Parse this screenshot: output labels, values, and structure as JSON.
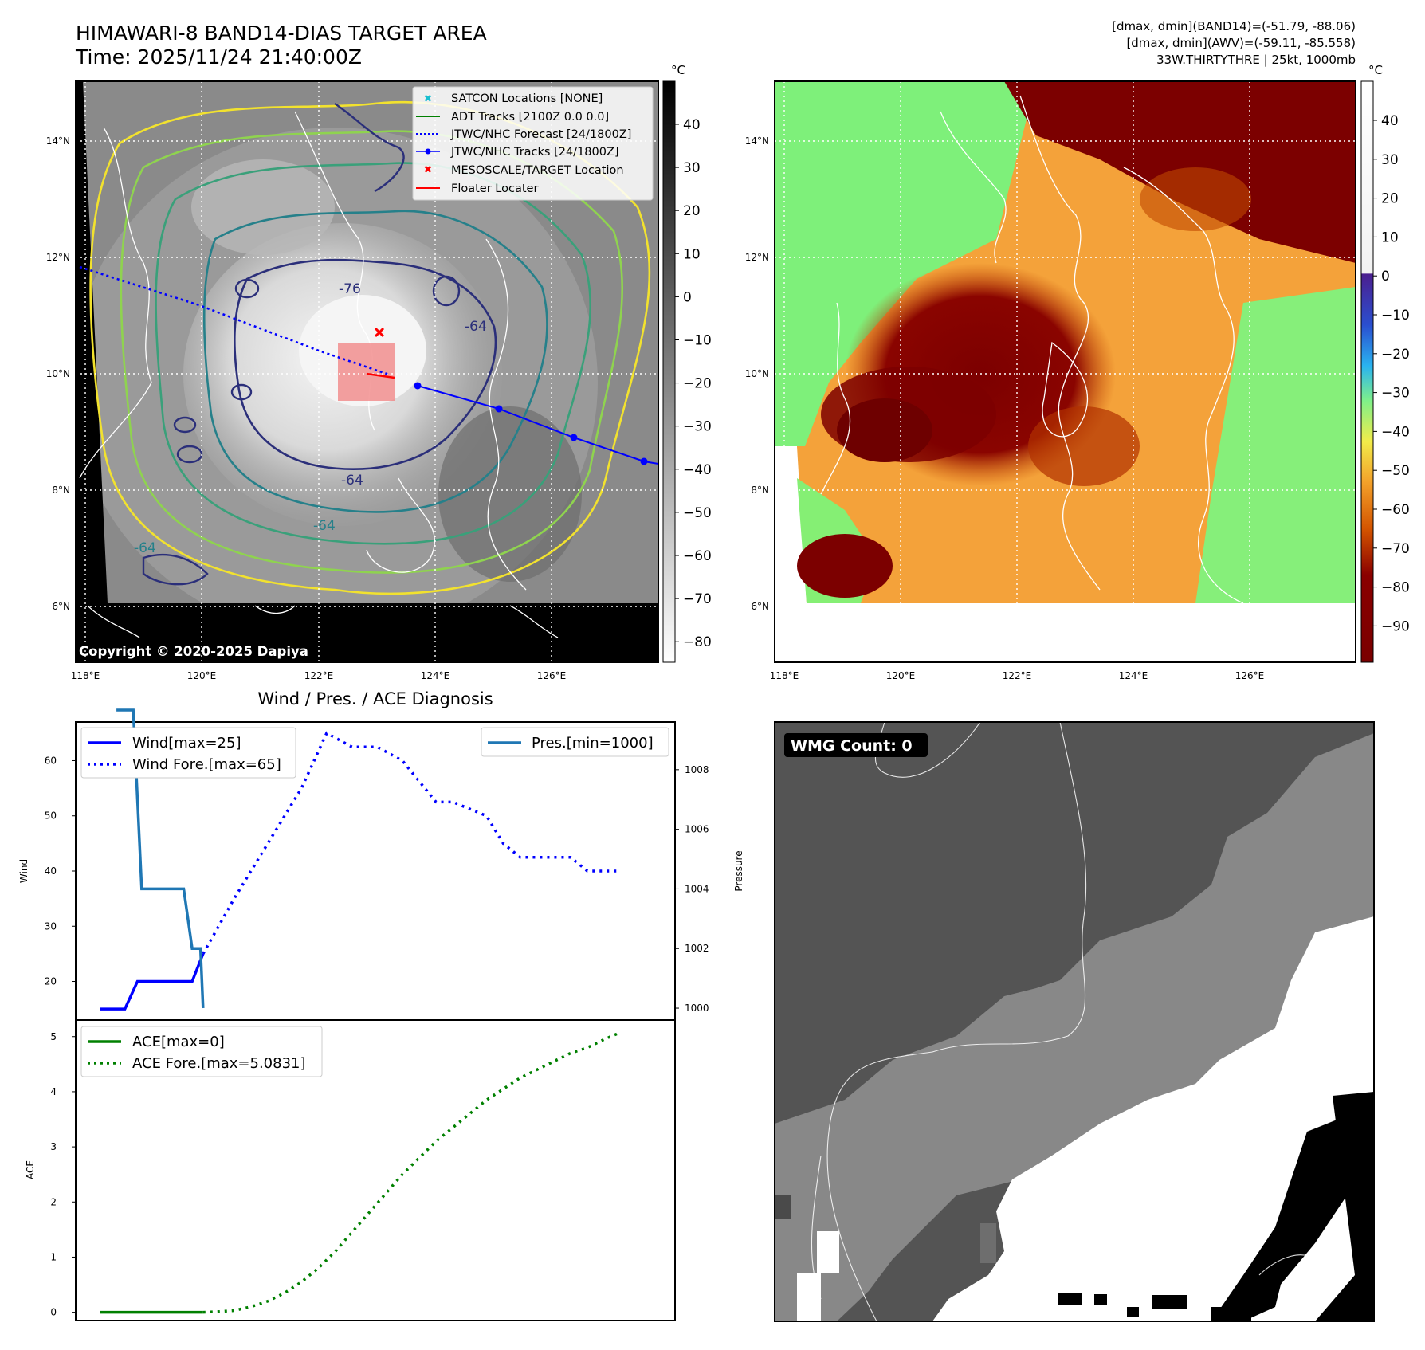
{
  "header": {
    "title": "HIMAWARI-8 BAND14-DIAS TARGET AREA",
    "time": "Time: 2025/11/24 21:40:00Z",
    "info_line1": "[dmax, dmin](BAND14)=(-51.79, -88.06)",
    "info_line2": "[dmax, dmin](AWV)=(-59.11, -85.558)",
    "info_line3": "33W.THIRTYTHRE | 25kt, 1000mb"
  },
  "ir_panel": {
    "legend": [
      "SATCON Locations [NONE]",
      "ADT Tracks [2100Z 0.0 0.0]",
      "JTWC/NHC Forecast [24/1800Z]",
      "JTWC/NHC Tracks [24/1800Z]",
      "MESOSCALE/TARGET Location",
      "Floater Locater"
    ],
    "copyright": "Copyright © 2020-2025 Dapiya",
    "contour_labels": [
      "-76",
      "-64",
      "-64",
      "-64",
      "-64"
    ],
    "colorbar_unit": "°C",
    "colorbar_ticks": [
      "40",
      "30",
      "20",
      "10",
      "0",
      "−10",
      "−20",
      "−30",
      "−40",
      "−50",
      "−60",
      "−70",
      "−80"
    ],
    "colors": {
      "track": "#0000ff",
      "target": "#ff0000",
      "floater": "#ff0000",
      "box": "#f08080"
    }
  },
  "awv_panel": {
    "colorbar_unit": "°C",
    "colorbar_ticks": [
      "40",
      "30",
      "20",
      "10",
      "0",
      "−10",
      "−20",
      "−30",
      "−40",
      "−50",
      "−60",
      "−70",
      "−80",
      "−90"
    ]
  },
  "map_axes": {
    "lat_labels": [
      "14°N",
      "12°N",
      "10°N",
      "8°N",
      "6°N"
    ],
    "lon_labels": [
      "118°E",
      "120°E",
      "122°E",
      "124°E",
      "126°E"
    ]
  },
  "chart_data": [
    {
      "type": "line",
      "title": "Wind / Pres. / ACE Diagnosis",
      "ylabel": "Wind",
      "ylabel_right": "Pressure",
      "ylim": [
        13,
        67
      ],
      "ylim_right": [
        999.6,
        1009.6
      ],
      "y_ticks": [
        "60",
        "50",
        "40",
        "30",
        "20"
      ],
      "y_ticks_right": [
        "1008",
        "1006",
        "1004",
        "1002",
        "1000"
      ],
      "legend_left": [
        "Wind[max=25]",
        "Wind Fore.[max=65]"
      ],
      "legend_right": [
        "Pres.[min=1000]"
      ],
      "series": [
        {
          "name": "Wind[max=25]",
          "style": "solid",
          "color": "#0000ff",
          "x": [
            0,
            3,
            4.5,
            7,
            11,
            12.3
          ],
          "values": [
            15,
            15,
            20,
            20,
            20,
            25
          ]
        },
        {
          "name": "Wind Fore.[max=65]",
          "style": "dotted",
          "color": "#0000ff",
          "x": [
            12.3,
            16,
            20,
            24,
            27,
            30,
            33,
            36,
            40,
            42,
            46,
            48,
            50,
            54,
            56,
            58,
            60,
            62
          ],
          "values": [
            25,
            35,
            45,
            55,
            65,
            62.5,
            62.5,
            60,
            52.5,
            52.5,
            50,
            45,
            42.5,
            42.5,
            42.5,
            40,
            40,
            40
          ]
        },
        {
          "name": "Pres.[min=1000]",
          "axis": "right",
          "style": "solid",
          "color": "#1f77b4",
          "x": [
            2,
            4,
            5,
            10,
            11,
            12,
            12.3
          ],
          "values": [
            1010,
            1010,
            1004,
            1004,
            1002,
            1002,
            1000
          ]
        }
      ]
    },
    {
      "type": "line",
      "ylabel": "ACE",
      "ylim": [
        -0.15,
        5.3
      ],
      "y_ticks": [
        "5",
        "4",
        "3",
        "2",
        "1",
        "0"
      ],
      "legend": [
        "ACE[max=0]",
        "ACE Fore.[max=5.0831]"
      ],
      "series": [
        {
          "name": "ACE[max=0]",
          "style": "solid",
          "color": "#008000",
          "x": [
            0,
            12.3
          ],
          "values": [
            0,
            0
          ]
        },
        {
          "name": "ACE Fore.[max=5.0831]",
          "style": "dotted",
          "color": "#008000",
          "x": [
            12.3,
            14,
            16,
            18,
            20,
            22,
            24,
            26,
            28,
            30,
            32,
            34,
            36,
            38,
            40,
            42,
            44,
            46,
            48,
            50,
            52,
            54,
            56,
            58,
            60,
            62
          ],
          "values": [
            0,
            0.01,
            0.03,
            0.1,
            0.2,
            0.35,
            0.55,
            0.8,
            1.1,
            1.45,
            1.8,
            2.15,
            2.5,
            2.8,
            3.1,
            3.35,
            3.6,
            3.85,
            4.05,
            4.25,
            4.4,
            4.55,
            4.7,
            4.8,
            4.95,
            5.08
          ]
        }
      ]
    }
  ],
  "wmg_panel": {
    "badge": "WMG Count: 0"
  }
}
